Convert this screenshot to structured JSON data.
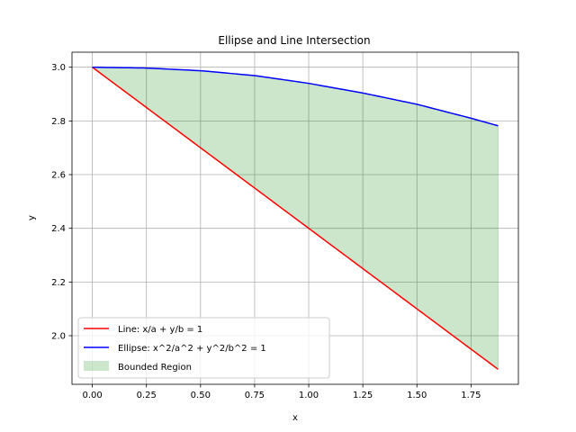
{
  "chart_data": {
    "type": "line",
    "title": "Ellipse and Line Intersection",
    "xlabel": "x",
    "ylabel": "y",
    "xlim": [
      -0.094,
      1.969
    ],
    "ylim": [
      1.819,
      3.056
    ],
    "xticks": [
      0.0,
      0.25,
      0.5,
      0.75,
      1.0,
      1.25,
      1.5,
      1.75
    ],
    "xtick_labels": [
      "0.00",
      "0.25",
      "0.50",
      "0.75",
      "1.00",
      "1.25",
      "1.50",
      "1.75"
    ],
    "yticks": [
      2.0,
      2.2,
      2.4,
      2.6,
      2.8,
      3.0
    ],
    "ytick_labels": [
      "2.0",
      "2.2",
      "2.4",
      "2.6",
      "2.8",
      "3.0"
    ],
    "grid": true,
    "legend_position": "lower-left",
    "series": [
      {
        "name": "Line: x/a + y/b = 1",
        "color": "#ff0000",
        "x": [
          0.0,
          0.25,
          0.5,
          0.75,
          1.0,
          1.25,
          1.5,
          1.75,
          1.875
        ],
        "y": [
          3.0,
          2.85,
          2.7,
          2.55,
          2.4,
          2.25,
          2.1,
          1.95,
          1.875
        ]
      },
      {
        "name": "Ellipse: x^2/a^2 + y^2/b^2 = 1",
        "color": "#0000ff",
        "x": [
          0.0,
          0.25,
          0.5,
          0.75,
          1.0,
          1.25,
          1.5,
          1.75,
          1.875
        ],
        "y": [
          3.0,
          2.997,
          2.987,
          2.969,
          2.94,
          2.904,
          2.862,
          2.81,
          2.782
        ]
      }
    ],
    "fill": {
      "name": "Bounded Region",
      "color": "#008000",
      "opacity": 0.2
    }
  }
}
